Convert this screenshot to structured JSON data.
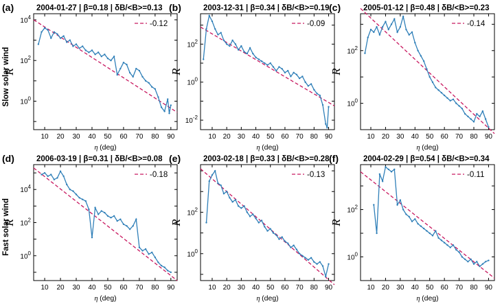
{
  "row_labels": [
    "Slow solar wind",
    "Fast solar wind"
  ],
  "colors": {
    "data": "#2f7fb8",
    "fit": "#c8175f"
  },
  "chart_data": [
    {
      "type": "line",
      "id": "a",
      "letter": "(a)",
      "title": "2004-01-27 | β=0.18 | δB/<B>=0.13",
      "xlabel": "η (deg)",
      "ylabel": "R",
      "yscale": "log",
      "xlim": [
        3,
        94
      ],
      "xticks": [
        10,
        20,
        30,
        40,
        50,
        60,
        70,
        80,
        90
      ],
      "ylim_log10": [
        -1.4,
        4.3
      ],
      "yticks_log10": [
        0,
        2,
        4
      ],
      "yticklabels": [
        "10^0",
        "10^2",
        "10^4"
      ],
      "legend": "-0.12",
      "fit": {
        "x": [
          3,
          94
        ],
        "y_log10": [
          4.0,
          -0.55
        ]
      },
      "series": {
        "x": [
          6,
          8,
          10,
          12,
          14,
          16,
          18,
          20,
          22,
          24,
          26,
          28,
          30,
          32,
          34,
          36,
          38,
          40,
          42,
          44,
          46,
          48,
          50,
          52,
          54,
          56,
          58,
          60,
          62,
          64,
          66,
          68,
          70,
          72,
          74,
          76,
          78,
          80,
          82,
          84,
          86,
          88,
          89,
          90
        ],
        "y_log10": [
          2.8,
          3.4,
          3.6,
          3.5,
          3.1,
          3.4,
          3.3,
          3.1,
          3.2,
          2.9,
          3.0,
          2.7,
          2.8,
          2.6,
          2.7,
          2.5,
          2.4,
          2.5,
          2.3,
          2.4,
          2.2,
          2.3,
          2.1,
          2.0,
          2.2,
          1.3,
          1.6,
          1.9,
          1.8,
          1.4,
          1.2,
          1.6,
          1.5,
          1.2,
          1.0,
          0.9,
          0.7,
          0.6,
          0.2,
          -0.3,
          -0.5,
          0.1,
          -0.6,
          -0.2
        ]
      }
    },
    {
      "type": "line",
      "id": "b",
      "letter": "(b)",
      "title": "2003-12-31 | β=0.34 | δB/<B>=0.19",
      "xlabel": "η (deg)",
      "ylabel": "R",
      "yscale": "log",
      "xlim": [
        2,
        94
      ],
      "xticks": [
        10,
        20,
        30,
        40,
        50,
        60,
        70,
        80,
        90
      ],
      "ylim_log10": [
        -2.5,
        3.6
      ],
      "yticks_log10": [
        -2,
        0,
        2
      ],
      "yticklabels": [
        "10^-2",
        "10^0",
        "10^2"
      ],
      "legend": "-0.09",
      "fit": {
        "x": [
          2,
          94
        ],
        "y_log10": [
          2.9,
          -1.25
        ]
      },
      "series": {
        "x": [
          4,
          6,
          8,
          10,
          12,
          14,
          16,
          18,
          20,
          22,
          24,
          26,
          28,
          30,
          32,
          34,
          36,
          38,
          40,
          42,
          44,
          46,
          48,
          50,
          52,
          54,
          56,
          58,
          60,
          62,
          64,
          66,
          68,
          70,
          72,
          74,
          76,
          78,
          80,
          82,
          84,
          86,
          88,
          89,
          90
        ],
        "y_log10": [
          1.2,
          2.8,
          3.5,
          3.2,
          2.8,
          2.5,
          2.6,
          2.2,
          2.0,
          1.9,
          2.2,
          2.0,
          1.7,
          1.9,
          1.6,
          1.5,
          1.8,
          1.5,
          1.3,
          1.2,
          1.1,
          1.0,
          0.9,
          1.0,
          0.8,
          0.6,
          0.8,
          0.7,
          0.5,
          0.6,
          0.3,
          0.5,
          0.4,
          0.2,
          0.3,
          0.0,
          -0.2,
          -0.1,
          -0.4,
          -0.6,
          -0.7,
          -1.2,
          -2.2,
          -2.4,
          -1.3
        ]
      }
    },
    {
      "type": "line",
      "id": "c",
      "letter": "(c)",
      "title": "2005-01-12 | β=0.48 | δB/<B>=0.23",
      "xlabel": "η (deg)",
      "ylabel": "R",
      "yscale": "log",
      "xlim": [
        3,
        94
      ],
      "xticks": [
        10,
        20,
        30,
        40,
        50,
        60,
        70,
        80,
        90
      ],
      "ylim_log10": [
        -1.0,
        3.4
      ],
      "yticks_log10": [
        0,
        2
      ],
      "yticklabels": [
        "10^0",
        "10^2"
      ],
      "legend": "-0.14",
      "fit": {
        "x": [
          3,
          94
        ],
        "y_log10": [
          3.6,
          -1.15
        ]
      },
      "series": {
        "x": [
          6,
          8,
          10,
          12,
          14,
          16,
          18,
          20,
          22,
          24,
          26,
          28,
          30,
          32,
          34,
          36,
          38,
          40,
          42,
          44,
          46,
          48,
          50,
          52,
          54,
          56,
          58,
          60,
          62,
          64,
          66,
          68,
          70,
          72,
          74,
          76,
          78,
          80,
          82,
          84,
          86,
          88,
          90
        ],
        "y_log10": [
          1.9,
          2.5,
          2.8,
          2.7,
          2.9,
          2.6,
          2.9,
          3.1,
          2.8,
          3.0,
          3.2,
          2.7,
          2.9,
          3.3,
          2.8,
          2.6,
          2.7,
          2.3,
          2.0,
          1.8,
          1.6,
          1.3,
          1.0,
          0.8,
          0.6,
          0.5,
          0.4,
          0.3,
          0.2,
          0.1,
          0.15,
          0.0,
          -0.1,
          -0.2,
          -0.4,
          -0.5,
          -0.6,
          -0.7,
          -0.4,
          -0.5,
          -0.3,
          -0.6,
          -0.9
        ]
      }
    },
    {
      "type": "line",
      "id": "d",
      "letter": "(d)",
      "title": "2006-03-19 | β=0.31 | δB/<B>=0.08",
      "xlabel": "η (deg)",
      "ylabel": "R",
      "yscale": "log",
      "xlim": [
        3,
        94
      ],
      "xticks": [
        10,
        20,
        30,
        40,
        50,
        60,
        70,
        80,
        90
      ],
      "ylim_log10": [
        -1.5,
        5.5
      ],
      "yticks_log10": [
        0,
        2,
        4
      ],
      "yticklabels": [
        "10^0",
        "10^2",
        "10^4"
      ],
      "legend": "-0.18",
      "fit": {
        "x": [
          3,
          94
        ],
        "y_log10": [
          5.3,
          -1.5
        ]
      },
      "series": {
        "x": [
          8,
          10,
          12,
          14,
          16,
          18,
          20,
          22,
          24,
          26,
          28,
          30,
          32,
          34,
          36,
          38,
          40,
          42,
          44,
          46,
          48,
          50,
          52,
          54,
          56,
          58,
          60,
          62,
          64,
          66,
          68,
          70,
          72,
          74,
          76,
          78,
          80,
          82,
          84,
          86,
          88,
          90
        ],
        "y_log10": [
          4.9,
          5.0,
          4.8,
          4.9,
          4.6,
          4.7,
          5.1,
          4.8,
          4.3,
          4.0,
          3.9,
          3.7,
          3.5,
          3.4,
          3.3,
          2.8,
          1.1,
          2.9,
          2.5,
          2.7,
          2.6,
          2.4,
          2.3,
          2.4,
          2.1,
          2.2,
          1.9,
          1.8,
          1.6,
          1.8,
          2.2,
          0.5,
          0.3,
          0.4,
          0.1,
          0.2,
          -0.1,
          -0.4,
          -0.6,
          -0.7,
          -0.9,
          -1.0
        ]
      }
    },
    {
      "type": "line",
      "id": "e",
      "letter": "(e)",
      "title": "2003-02-18 | β=0.33 | δB/<B>=0.28",
      "xlabel": "η (deg)",
      "ylabel": "R",
      "yscale": "log",
      "xlim": [
        2,
        94
      ],
      "xticks": [
        10,
        20,
        30,
        40,
        50,
        60,
        70,
        80,
        90
      ],
      "ylim_log10": [
        -1.3,
        4.3
      ],
      "yticks_log10": [
        0,
        2
      ],
      "yticklabels": [
        "10^0",
        "10^2"
      ],
      "legend": "-0.13",
      "fit": {
        "x": [
          2,
          94
        ],
        "y_log10": [
          4.1,
          -1.5
        ]
      },
      "series": {
        "x": [
          6,
          8,
          10,
          12,
          14,
          16,
          18,
          20,
          22,
          24,
          26,
          28,
          30,
          32,
          34,
          36,
          38,
          40,
          42,
          44,
          46,
          48,
          50,
          52,
          54,
          56,
          58,
          60,
          62,
          64,
          66,
          68,
          70,
          72,
          74,
          76,
          78,
          80,
          82,
          84,
          86,
          88,
          90
        ],
        "y_log10": [
          1.5,
          3.5,
          3.8,
          4.0,
          3.4,
          3.3,
          2.9,
          3.0,
          2.7,
          2.5,
          2.6,
          2.3,
          2.2,
          2.3,
          2.0,
          1.8,
          1.9,
          1.7,
          1.5,
          1.6,
          1.3,
          1.1,
          1.2,
          1.0,
          0.9,
          0.7,
          0.8,
          0.6,
          0.5,
          0.3,
          0.4,
          0.2,
          0.0,
          -0.1,
          -0.2,
          -0.3,
          -0.2,
          -0.4,
          -0.5,
          -0.4,
          -0.6,
          -1.1,
          -0.5
        ]
      }
    },
    {
      "type": "line",
      "id": "f",
      "letter": "(f)",
      "title": "2004-02-29 | β=0.54 | δB/<B>=0.34",
      "xlabel": "η (deg)",
      "ylabel": "R",
      "yscale": "log",
      "xlim": [
        3,
        94
      ],
      "xticks": [
        10,
        20,
        30,
        40,
        50,
        60,
        70,
        80,
        90
      ],
      "ylim_log10": [
        -1.0,
        3.9
      ],
      "yticks_log10": [
        0,
        2
      ],
      "yticklabels": [
        "10^0",
        "10^2"
      ],
      "legend": "-0.11",
      "fit": {
        "x": [
          3,
          94
        ],
        "y_log10": [
          3.6,
          -0.9
        ]
      },
      "series": {
        "x": [
          12,
          14,
          16,
          18,
          20,
          22,
          24,
          26,
          28,
          30,
          32,
          34,
          36,
          38,
          40,
          42,
          44,
          46,
          48,
          50,
          52,
          54,
          56,
          58,
          60,
          62,
          64,
          66,
          68,
          70,
          72,
          74,
          76,
          78,
          80,
          82,
          84,
          86,
          88,
          90
        ],
        "y_log10": [
          2.2,
          1.0,
          3.5,
          3.2,
          3.8,
          3.7,
          3.6,
          3.7,
          2.2,
          2.4,
          2.0,
          1.8,
          1.7,
          1.5,
          1.6,
          1.4,
          1.3,
          1.2,
          1.1,
          1.0,
          0.9,
          1.1,
          0.8,
          0.7,
          0.6,
          0.5,
          0.4,
          0.5,
          0.3,
          0.2,
          0.0,
          -0.1,
          -0.2,
          -0.1,
          -0.3,
          -0.2,
          -0.4,
          -0.3,
          -0.2,
          -0.15
        ]
      }
    }
  ]
}
